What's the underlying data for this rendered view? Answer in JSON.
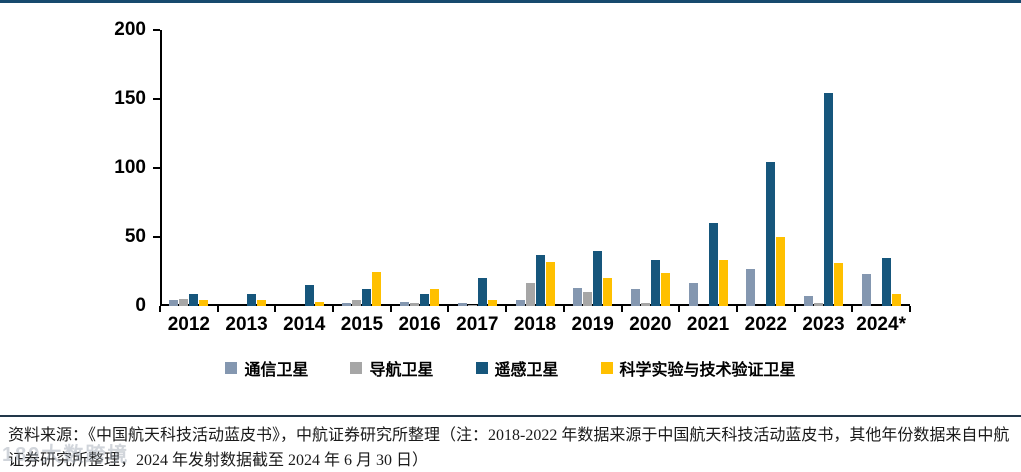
{
  "chart_data": {
    "type": "bar",
    "categories": [
      "2012",
      "2013",
      "2014",
      "2015",
      "2016",
      "2017",
      "2018",
      "2019",
      "2020",
      "2021",
      "2022",
      "2023",
      "2024*"
    ],
    "series": [
      {
        "name": "通信卫星",
        "color": "#8497B0",
        "values": [
          4,
          0,
          0,
          2,
          3,
          2,
          4,
          13,
          12,
          17,
          27,
          7,
          23
        ]
      },
      {
        "name": "导航卫星",
        "color": "#A6A6A6",
        "values": [
          5,
          0,
          0,
          4,
          2,
          1,
          17,
          10,
          2,
          0,
          0,
          2,
          0
        ]
      },
      {
        "name": "遥感卫星",
        "color": "#16567C",
        "values": [
          9,
          9,
          15,
          12,
          9,
          20,
          37,
          40,
          33,
          60,
          104,
          154,
          35
        ]
      },
      {
        "name": "科学实验与技术验证卫星",
        "color": "#FFC000",
        "values": [
          4,
          4,
          3,
          25,
          12,
          4,
          32,
          20,
          24,
          33,
          50,
          31,
          9
        ]
      }
    ],
    "title": "",
    "xlabel": "",
    "ylabel": "",
    "ylim": [
      0,
      200
    ],
    "yticks": [
      0,
      50,
      100,
      150,
      200
    ],
    "grid": false,
    "legend_position": "bottom"
  },
  "source_note": "资料来源：《中国航天科技活动蓝皮书》，中航证券研究所整理（注：2018-2022 年数据来源于中国航天科技活动蓝皮书，其他年份数据来自中航证券研究所整理，2024 年发射数据截至 2024 年 6 月 30 日）",
  "watermark": "189大数跨境",
  "colors": {
    "top_border": "#174a6e",
    "separator": "#22374a",
    "axis": "#000000"
  }
}
